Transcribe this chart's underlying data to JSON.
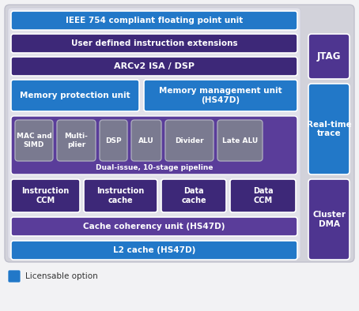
{
  "bg_outer": "#d4d4dc",
  "bg_inner": "#e0e0e8",
  "purple_dark": "#3d2878",
  "purple_mid": "#5a3d9a",
  "blue_bright": "#2278c8",
  "blue_right": "#2278c8",
  "gray_sub": "#7a7a90",
  "right_purple": "#4e3590",
  "right_blue": "#2278c8",
  "title": "IEEE 754 compliant floating point unit",
  "row2": "User defined instruction extensions",
  "row3": "ARCv2 ISA / DSP",
  "mem_prot": "Memory protection unit",
  "mem_mgmt": "Memory management unit\n(HS47D)",
  "pipeline_label": "Dual-issue, 10-stage pipeline",
  "sub_boxes": [
    "MAC and\nSIMD",
    "Multi-\nplier",
    "DSP",
    "ALU",
    "Divider",
    "Late ALU"
  ],
  "cache_row": [
    "Instruction\nCCM",
    "Instruction\ncache",
    "Data\ncache",
    "Data\nCCM"
  ],
  "coherency": "Cache coherency unit (HS47D)",
  "l2cache": "L2 cache (HS47D)",
  "jtag": "JTAG",
  "rtt": "Real-time\ntrace",
  "cluster": "Cluster\nDMA",
  "legend_label": "Licensable option",
  "legend_color": "#2278c8",
  "fig_w": 4.54,
  "fig_h": 3.94,
  "dpi": 100
}
